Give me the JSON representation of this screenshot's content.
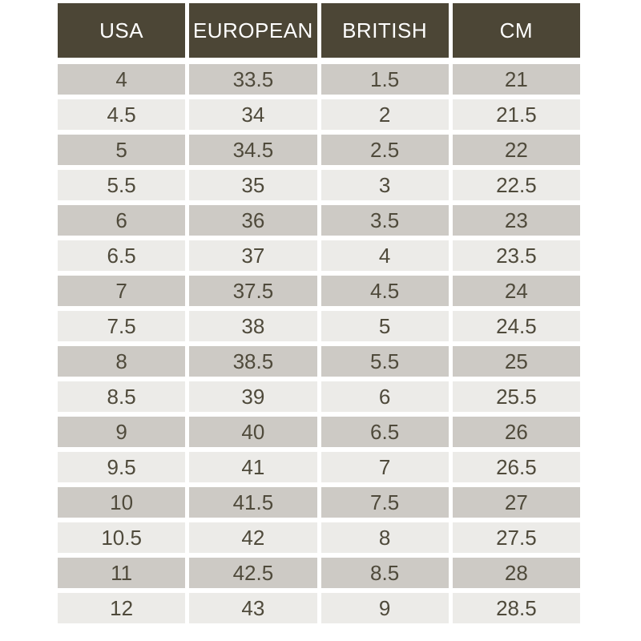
{
  "chart_data": {
    "type": "table",
    "columns": [
      "USA",
      "EUROPEAN",
      "BRITISH",
      "CM"
    ],
    "rows": [
      [
        "4",
        "33.5",
        "1.5",
        "21"
      ],
      [
        "4.5",
        "34",
        "2",
        "21.5"
      ],
      [
        "5",
        "34.5",
        "2.5",
        "22"
      ],
      [
        "5.5",
        "35",
        "3",
        "22.5"
      ],
      [
        "6",
        "36",
        "3.5",
        "23"
      ],
      [
        "6.5",
        "37",
        "4",
        "23.5"
      ],
      [
        "7",
        "37.5",
        "4.5",
        "24"
      ],
      [
        "7.5",
        "38",
        "5",
        "24.5"
      ],
      [
        "8",
        "38.5",
        "5.5",
        "25"
      ],
      [
        "8.5",
        "39",
        "6",
        "25.5"
      ],
      [
        "9",
        "40",
        "6.5",
        "26"
      ],
      [
        "9.5",
        "41",
        "7",
        "26.5"
      ],
      [
        "10",
        "41.5",
        "7.5",
        "27"
      ],
      [
        "10.5",
        "42",
        "8",
        "27.5"
      ],
      [
        "11",
        "42.5",
        "8.5",
        "28"
      ],
      [
        "12",
        "43",
        "9",
        "28.5"
      ]
    ],
    "layout": {
      "legend": false,
      "grid": false,
      "row_striping": "alternating, first row dark"
    }
  },
  "colors": {
    "header_bg": "#4C4636",
    "header_text": "#FFFFFF",
    "row_dark": "#CDCAC5",
    "row_light": "#ECEBE8",
    "body_text": "#4F4A3B",
    "page_background": "#FFFFFF"
  }
}
